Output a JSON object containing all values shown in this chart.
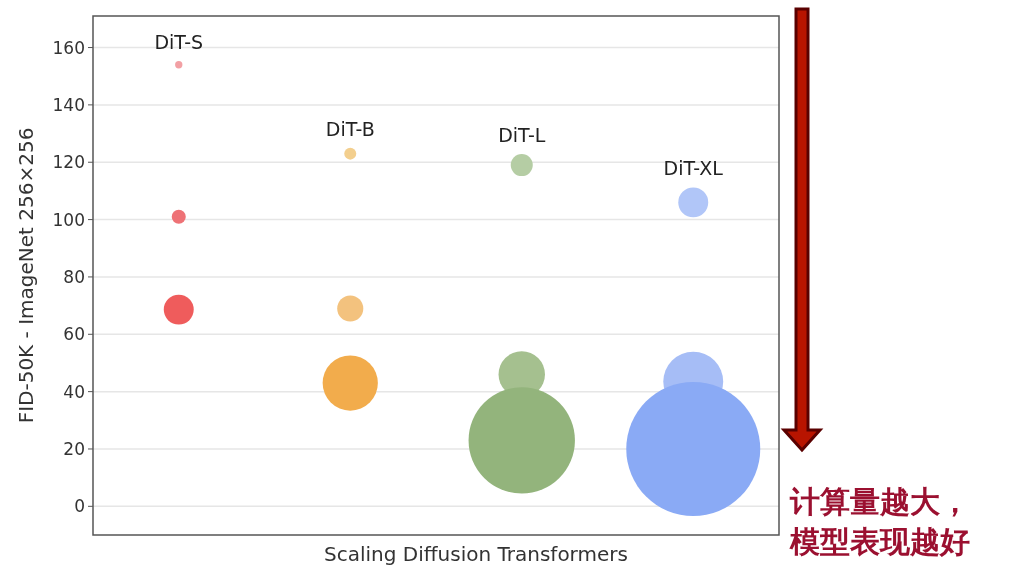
{
  "chart_data": {
    "type": "bubble",
    "xlabel": "Scaling Diffusion Transformers",
    "ylabel": "FID-50K - ImageNet 256×256",
    "categories": [
      "DiT-S",
      "DiT-B",
      "DiT-L",
      "DiT-XL"
    ],
    "series": [
      {
        "colors": [
          "#f2a0a4",
          "#f3cf8e",
          "#b5cda4",
          "#b1c6f8"
        ],
        "values": [
          154,
          123,
          119,
          106
        ],
        "sizes": [
          0.003,
          0.008,
          0.027,
          0.05
        ]
      },
      {
        "colors": [
          "#ee7276",
          "#f3c27e",
          "#a5c08f",
          "#a6bdf6"
        ],
        "values": [
          101,
          69,
          46,
          43.5
        ],
        "sizes": [
          0.011,
          0.038,
          0.12,
          0.2
        ]
      },
      {
        "colors": [
          "#ef5c5c",
          "#f2ac4c",
          "#93b47c",
          "#8aaaf5"
        ],
        "values": [
          68.6,
          43,
          23,
          20
        ],
        "sizes": [
          0.05,
          0.17,
          0.63,
          1
        ]
      }
    ],
    "ylim": [
      -10,
      171
    ],
    "yticks": [
      0,
      20,
      40,
      60,
      80,
      100,
      120,
      140,
      160
    ],
    "grid": "y",
    "annotations": [
      "计算量越大，模型表现越好"
    ]
  }
}
